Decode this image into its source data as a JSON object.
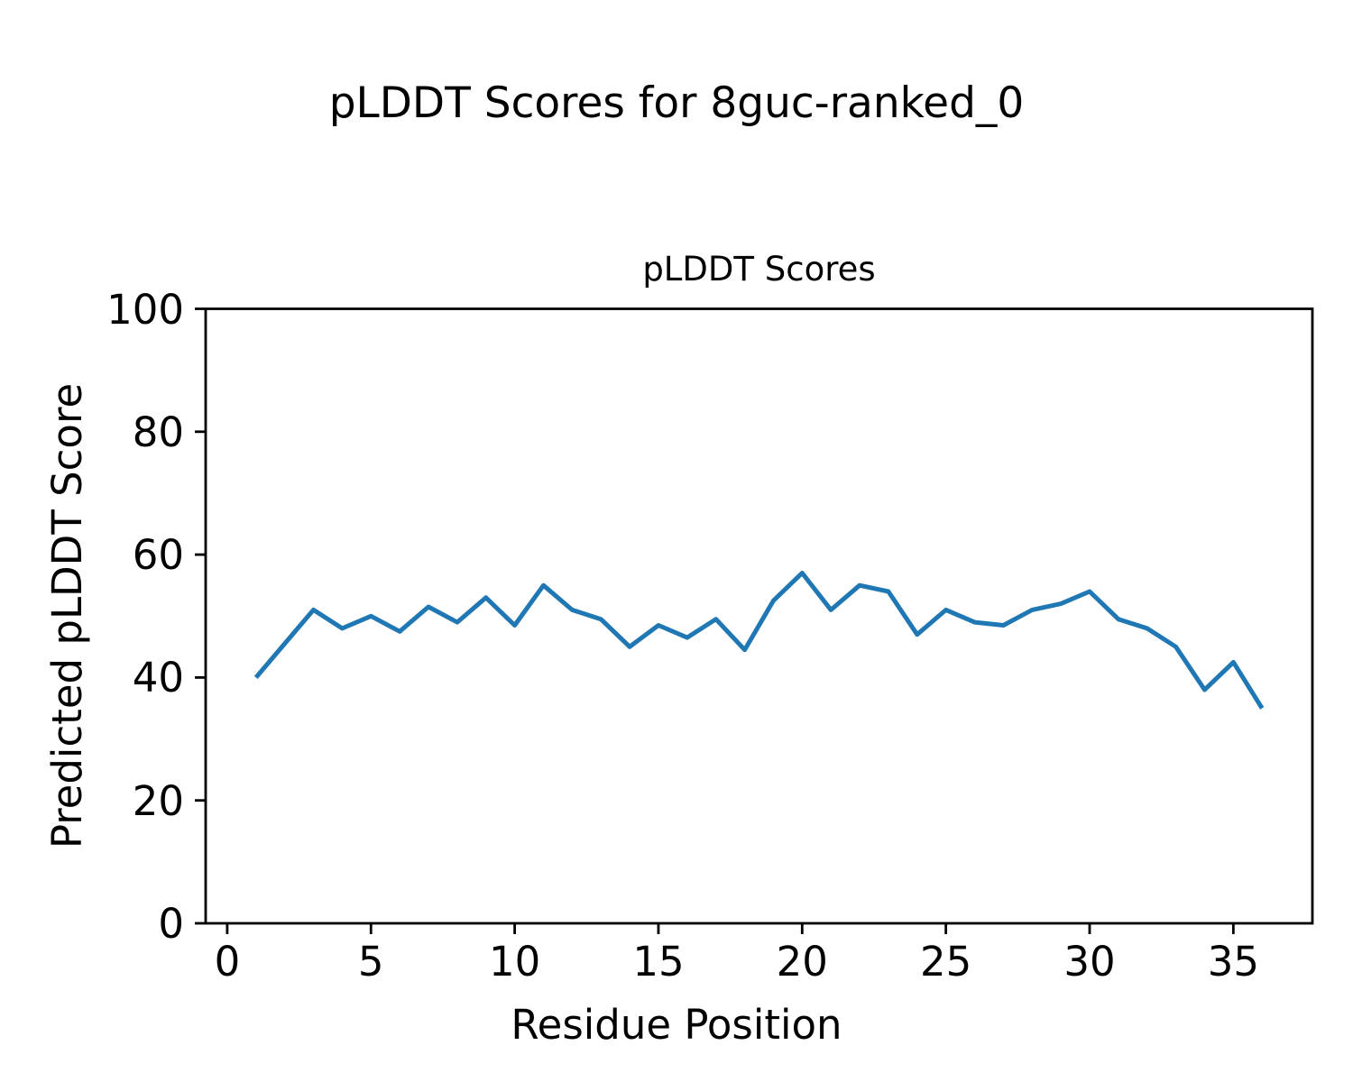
{
  "chart_data": {
    "type": "line",
    "suptitle": "pLDDT Scores for 8guc-ranked_0",
    "title": "pLDDT Scores",
    "xlabel": "Residue Position",
    "ylabel": "Predicted pLDDT Score",
    "x": [
      1,
      2,
      3,
      4,
      5,
      6,
      7,
      8,
      9,
      10,
      11,
      12,
      13,
      14,
      15,
      16,
      17,
      18,
      19,
      20,
      21,
      22,
      23,
      24,
      25,
      26,
      27,
      28,
      29,
      30,
      31,
      32,
      33,
      34,
      35,
      36
    ],
    "y": [
      40,
      45.5,
      51,
      48,
      50,
      47.5,
      51.5,
      49,
      53,
      48.5,
      55,
      51,
      49.5,
      45,
      48.5,
      46.5,
      49.5,
      44.5,
      52.5,
      57,
      51,
      55,
      54,
      47,
      51,
      49,
      48.5,
      51,
      52,
      54,
      49.5,
      48,
      45,
      38,
      42.5,
      35
    ],
    "xticks": [
      0,
      5,
      10,
      15,
      20,
      25,
      30,
      35
    ],
    "yticks": [
      0,
      20,
      40,
      60,
      80,
      100
    ],
    "xlim": [
      -0.75,
      37.75
    ],
    "ylim": [
      0,
      100
    ],
    "grid": false,
    "legend": null,
    "line_color": "#1f77b4",
    "axis_color": "#000000",
    "background_color": "#ffffff"
  }
}
